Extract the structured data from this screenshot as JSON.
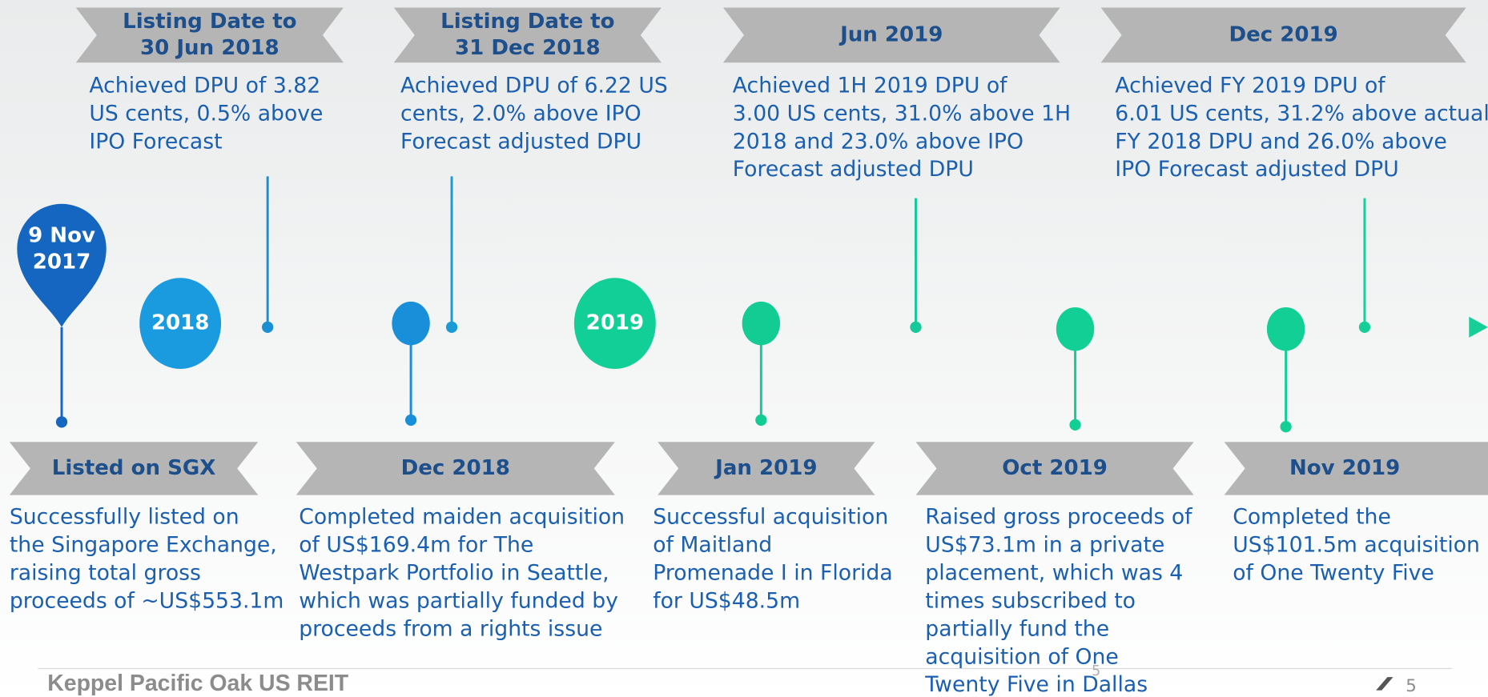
{
  "start": {
    "label": [
      "9 Nov",
      "2017"
    ]
  },
  "year_markers": [
    "2018",
    "2019"
  ],
  "top_events": [
    {
      "heading": [
        "Listing Date to",
        "30 Jun 2018"
      ],
      "text": [
        "Achieved DPU of 3.82",
        "US cents, 0.5% above",
        "IPO Forecast"
      ]
    },
    {
      "heading": [
        "Listing Date to",
        "31 Dec 2018"
      ],
      "text": [
        "Achieved DPU of 6.22 US",
        "cents, 2.0% above IPO",
        "Forecast adjusted DPU"
      ]
    },
    {
      "heading": [
        "Jun 2019"
      ],
      "text": [
        "Achieved 1H 2019 DPU of",
        "3.00 US cents, 31.0% above 1H",
        "2018 and 23.0% above IPO",
        "Forecast adjusted DPU"
      ]
    },
    {
      "heading": [
        "Dec 2019"
      ],
      "text": [
        "Achieved FY 2019 DPU of",
        "6.01 US cents, 31.2% above actual",
        "FY 2018 DPU and 26.0% above",
        "IPO Forecast adjusted DPU"
      ]
    }
  ],
  "bottom_events": [
    {
      "heading": [
        "Listed on SGX"
      ],
      "text": [
        "Successfully listed on",
        "the Singapore Exchange,",
        "raising total gross",
        "proceeds of ~US$553.1m"
      ]
    },
    {
      "heading": [
        "Dec 2018"
      ],
      "text": [
        "Completed maiden acquisition",
        "of US$169.4m for The",
        "Westpark Portfolio in Seattle,",
        "which was partially funded by",
        "proceeds from a rights issue"
      ]
    },
    {
      "heading": [
        "Jan 2019"
      ],
      "text": [
        "Successful acquisition",
        "of Maitland",
        "Promenade I in Florida",
        "for US$48.5m"
      ]
    },
    {
      "heading": [
        "Oct 2019"
      ],
      "text": [
        "Raised gross proceeds of",
        "US$73.1m in a private",
        "placement, which was 4",
        "times subscribed to",
        "partially fund the",
        "acquisition of One",
        "Twenty Five in Dallas"
      ]
    },
    {
      "heading": [
        "Nov 2019"
      ],
      "text": [
        "Completed the",
        "US$101.5m acquisition",
        "of One Twenty Five"
      ]
    }
  ],
  "footer": {
    "brand": "Keppel Pacific Oak US REIT",
    "page_number_center": "5",
    "page_number": "5"
  }
}
